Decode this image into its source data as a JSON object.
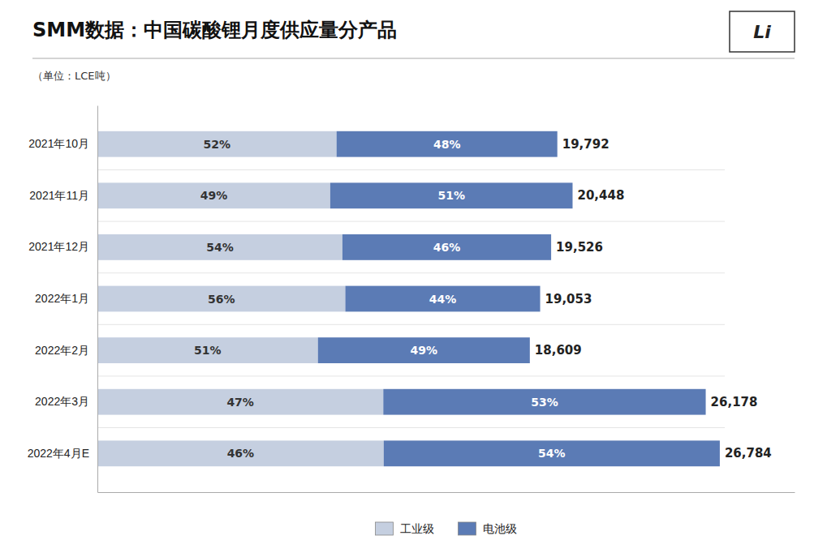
{
  "chart_data": {
    "type": "bar",
    "orientation": "horizontal",
    "stacked": true,
    "data_labels": true,
    "title": "SMM数据：中国碳酸锂月度供应量分产品",
    "subtitle": "（单位：LCE吨）",
    "annotations": [
      "Li"
    ],
    "categories": [
      "2021年10月",
      "2021年11月",
      "2021年12月",
      "2022年1月",
      "2022年2月",
      "2022年3月",
      "2022年4月E"
    ],
    "series": [
      {
        "name": "工业级",
        "color": "#c5cfe0",
        "values": [
          52,
          49,
          54,
          56,
          51,
          47,
          46
        ],
        "value_labels": [
          "52%",
          "49%",
          "54%",
          "56%",
          "51%",
          "47%",
          "46%"
        ]
      },
      {
        "name": "电池级",
        "color": "#5b7bb5",
        "values": [
          48,
          51,
          46,
          44,
          49,
          53,
          54
        ],
        "value_labels": [
          "48%",
          "51%",
          "46%",
          "44%",
          "49%",
          "53%",
          "54%"
        ]
      }
    ],
    "totals": [
      19792,
      20448,
      19526,
      19053,
      18609,
      26178,
      26784
    ],
    "total_labels": [
      "19,792",
      "20,448",
      "19,526",
      "19,053",
      "18,609",
      "26,178",
      "26,784"
    ],
    "xlim": [
      0,
      30000
    ],
    "tick_labels": "y",
    "grid": false,
    "legend": "bottom"
  }
}
